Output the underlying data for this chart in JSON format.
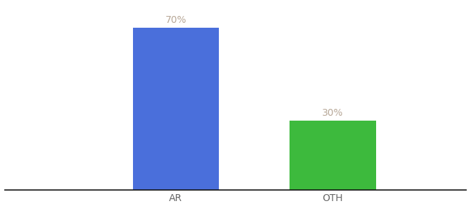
{
  "categories": [
    "AR",
    "OTH"
  ],
  "values": [
    70,
    30
  ],
  "bar_colors": [
    "#4a6fdb",
    "#3dba3d"
  ],
  "label_texts": [
    "70%",
    "30%"
  ],
  "label_color": "#b8a898",
  "tick_label_color": "#666666",
  "background_color": "#ffffff",
  "ylim": [
    0,
    80
  ],
  "bar_width": 0.55,
  "label_fontsize": 10,
  "tick_fontsize": 10,
  "spine_color": "#111111"
}
